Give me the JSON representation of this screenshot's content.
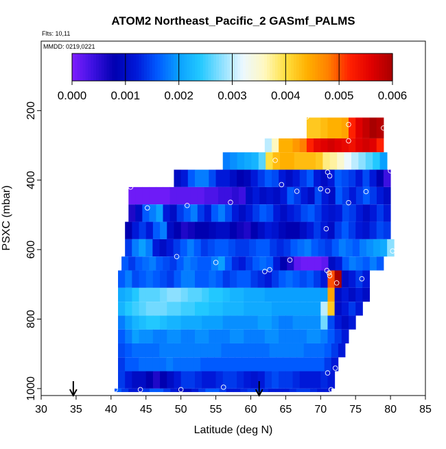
{
  "chart_data": {
    "type": "heatmap",
    "title": "ATOM2 Northeast_Pacific_2 GASmf_PALMS",
    "flights_text": "Flts: 10,11",
    "mmdd_text": "MMDD: 0219,0221",
    "xlabel": "Latitude (deg N)",
    "ylabel": "PSXC (mbar)",
    "xlim": [
      30,
      85
    ],
    "ylim": [
      1020,
      0
    ],
    "x_ticks": [
      "30",
      "35",
      "40",
      "45",
      "50",
      "55",
      "60",
      "65",
      "70",
      "75",
      "80",
      "85"
    ],
    "y_ticks": [
      "200",
      "400",
      "600",
      "800",
      "1000"
    ],
    "colorbar": {
      "range": [
        0,
        0.006
      ],
      "tick_labels": [
        "0.000",
        "0.001",
        "0.002",
        "0.003",
        "0.004",
        "0.005",
        "0.006"
      ],
      "colors": [
        "#7f1fff",
        "#3b10e0",
        "#0000b0",
        "#0018d8",
        "#005aff",
        "#0aa0ff",
        "#22c8ff",
        "#8ce0ff",
        "#ecf8ff",
        "#fff8c0",
        "#ffe040",
        "#ffb000",
        "#ff8000",
        "#ff2000",
        "#e00000",
        "#a80000"
      ]
    },
    "arrows_latitude": [
      34.6,
      61.2
    ],
    "rows": [
      {
        "p_top": 220,
        "p_bot": 280,
        "lat_start": 68,
        "lat_end": 79,
        "values": [
          0.0042,
          0.0042,
          0.0043,
          0.0044,
          0.0044,
          0.0045,
          0.0052,
          0.0056,
          0.0058,
          0.006,
          0.0059
        ]
      },
      {
        "p_top": 280,
        "p_bot": 320,
        "lat_start": 62,
        "lat_end": 79,
        "values": [
          0.003,
          0.0036,
          0.0044,
          0.0044,
          0.0046,
          0.0048,
          0.0052,
          0.0055,
          0.0056,
          0.0057,
          0.0056,
          0.0055,
          0.0054,
          0.0056,
          0.0057,
          0.0056,
          0.0052
        ]
      },
      {
        "p_top": 320,
        "p_bot": 370,
        "lat_start": 56,
        "lat_end": 79.5,
        "values": [
          0.0018,
          0.0019,
          0.002,
          0.0021,
          0.0022,
          0.0026,
          0.004,
          0.0043,
          0.0044,
          0.0044,
          0.0043,
          0.0043,
          0.0043,
          0.0042,
          0.0038,
          0.0037,
          0.0035,
          0.0032,
          0.003,
          0.0028,
          0.0026,
          0.0024,
          0.002
        ]
      },
      {
        "p_top": 370,
        "p_bot": 420,
        "lat_start": 49,
        "lat_end": 80,
        "values": [
          0.001,
          0.0012,
          0.0016,
          0.0018,
          0.0018,
          0.0015,
          0.0012,
          0.0012,
          0.001,
          0.0008,
          0.0009,
          0.0012,
          0.0014,
          0.0016,
          0.0015,
          0.0012,
          0.001,
          0.0012,
          0.0014,
          0.0016,
          0.0012,
          0.001,
          0.0012,
          0.0016,
          0.0015,
          0.0014,
          0.0012,
          0.0015,
          0.0012,
          0.0008,
          0.0004
        ]
      },
      {
        "p_top": 420,
        "p_bot": 470,
        "lat_start": 42.5,
        "lat_end": 80,
        "values": [
          0.0001,
          0.0001,
          0.0001,
          0.0001,
          0.0001,
          0.0001,
          0.0002,
          0.0002,
          0.0002,
          0.0002,
          0.0002,
          0.0003,
          0.0003,
          0.0004,
          0.0004,
          0.0005,
          0.0004,
          0.001,
          0.0012,
          0.001,
          0.0011,
          0.001,
          0.0012,
          0.0016,
          0.0014,
          0.0012,
          0.001,
          0.0015,
          0.0012,
          0.001,
          0.0016,
          0.0014,
          0.0012,
          0.0014,
          0.0016,
          0.0014,
          0.0012,
          0.001
        ]
      },
      {
        "p_top": 470,
        "p_bot": 520,
        "lat_start": 42.5,
        "lat_end": 80,
        "values": [
          0.0006,
          0.001,
          0.0016,
          0.0018,
          0.002,
          0.0012,
          0.001,
          0.0014,
          0.0016,
          0.0018,
          0.0014,
          0.0012,
          0.0016,
          0.0018,
          0.0015,
          0.0012,
          0.001,
          0.0012,
          0.0014,
          0.0016,
          0.0015,
          0.0012,
          0.001,
          0.0012,
          0.0013,
          0.0015,
          0.0016,
          0.0014,
          0.0012,
          0.0011,
          0.0012,
          0.0015,
          0.0014,
          0.0012,
          0.001,
          0.0012,
          0.0014,
          0.0012
        ]
      },
      {
        "p_top": 520,
        "p_bot": 570,
        "lat_start": 42,
        "lat_end": 80,
        "values": [
          0.0008,
          0.0012,
          0.0014,
          0.0012,
          0.0016,
          0.0018,
          0.001,
          0.0008,
          0.0006,
          0.0007,
          0.0008,
          0.0008,
          0.0009,
          0.001,
          0.001,
          0.0008,
          0.0007,
          0.0006,
          0.0008,
          0.001,
          0.0012,
          0.0011,
          0.0009,
          0.0008,
          0.0008,
          0.001,
          0.0012,
          0.0014,
          0.0012,
          0.001,
          0.0014,
          0.0016,
          0.0014,
          0.0012,
          0.0011,
          0.0013,
          0.0015,
          0.0014
        ]
      },
      {
        "p_top": 570,
        "p_bot": 620,
        "lat_start": 42,
        "lat_end": 80.5,
        "values": [
          0.0014,
          0.0018,
          0.002,
          0.0018,
          0.0012,
          0.001,
          0.0012,
          0.0014,
          0.0016,
          0.0018,
          0.0016,
          0.0014,
          0.0015,
          0.0016,
          0.0016,
          0.0015,
          0.0014,
          0.0014,
          0.0015,
          0.0016,
          0.0016,
          0.0014,
          0.0013,
          0.0014,
          0.0016,
          0.0017,
          0.0018,
          0.0016,
          0.0015,
          0.0014,
          0.0016,
          0.0018,
          0.0017,
          0.0016,
          0.0018,
          0.0019,
          0.002,
          0.0021,
          0.0028
        ]
      },
      {
        "p_top": 620,
        "p_bot": 660,
        "lat_start": 41.5,
        "lat_end": 79,
        "values": [
          0.0016,
          0.0014,
          0.0016,
          0.0017,
          0.0018,
          0.0016,
          0.0015,
          0.0014,
          0.0016,
          0.0018,
          0.0017,
          0.0016,
          0.0016,
          0.0018,
          0.002,
          0.0016,
          0.0013,
          0.0012,
          0.0014,
          0.0016,
          0.0017,
          0.0016,
          0.0012,
          0.0008,
          0.0006,
          0.0002,
          0.0001,
          0.0001,
          0.0001,
          0.0002,
          0.001,
          0.0012,
          0.0016,
          0.0018,
          0.0017,
          0.0016,
          0.0018,
          0.0016
        ]
      },
      {
        "p_top": 660,
        "p_bot": 710,
        "lat_start": 41,
        "lat_end": 77,
        "values": [
          0.0016,
          0.0018,
          0.0015,
          0.0016,
          0.0017,
          0.0016,
          0.0015,
          0.0014,
          0.0016,
          0.0018,
          0.0018,
          0.0016,
          0.0016,
          0.0017,
          0.0016,
          0.0014,
          0.0015,
          0.0016,
          0.0016,
          0.0014,
          0.0013,
          0.0012,
          0.0014,
          0.0016,
          0.0017,
          0.0016,
          0.0015,
          0.0016,
          0.0014,
          0.0012,
          0.005,
          0.006,
          0.001,
          0.0012,
          0.0014,
          0.0012
        ]
      },
      {
        "p_top": 710,
        "p_bot": 750,
        "lat_start": 41,
        "lat_end": 77,
        "values": [
          0.0021,
          0.0022,
          0.0024,
          0.0026,
          0.0026,
          0.0026,
          0.0027,
          0.0028,
          0.0028,
          0.0027,
          0.0026,
          0.0026,
          0.0025,
          0.0024,
          0.0024,
          0.0023,
          0.0022,
          0.0022,
          0.0021,
          0.0021,
          0.0021,
          0.002,
          0.002,
          0.002,
          0.002,
          0.002,
          0.002,
          0.002,
          0.002,
          0.002,
          0.0045,
          0.001,
          0.0012,
          0.001,
          0.0012,
          0.001
        ]
      },
      {
        "p_top": 750,
        "p_bot": 790,
        "lat_start": 41,
        "lat_end": 76,
        "values": [
          0.0022,
          0.0024,
          0.0025,
          0.0026,
          0.0027,
          0.0027,
          0.0027,
          0.0026,
          0.0026,
          0.0025,
          0.0025,
          0.0024,
          0.0024,
          0.0023,
          0.0023,
          0.0022,
          0.0022,
          0.0022,
          0.0021,
          0.0021,
          0.0021,
          0.0021,
          0.002,
          0.002,
          0.002,
          0.002,
          0.002,
          0.002,
          0.002,
          0.003,
          0.0042,
          0.001,
          0.0012,
          0.0014,
          0.0012
        ]
      },
      {
        "p_top": 790,
        "p_bot": 830,
        "lat_start": 41,
        "lat_end": 75,
        "values": [
          0.0018,
          0.002,
          0.0022,
          0.0023,
          0.0024,
          0.0024,
          0.0023,
          0.0022,
          0.0022,
          0.0021,
          0.0021,
          0.0021,
          0.002,
          0.002,
          0.002,
          0.0019,
          0.0019,
          0.0019,
          0.0019,
          0.0019,
          0.002,
          0.002,
          0.0019,
          0.0018,
          0.0018,
          0.0019,
          0.0019,
          0.0019,
          0.0019,
          0.0027,
          0.0015,
          0.0012,
          0.001,
          0.0012
        ]
      },
      {
        "p_top": 830,
        "p_bot": 870,
        "lat_start": 41,
        "lat_end": 74,
        "values": [
          0.0016,
          0.0018,
          0.002,
          0.0019,
          0.0019,
          0.0018,
          0.0018,
          0.0019,
          0.0019,
          0.0018,
          0.0018,
          0.0019,
          0.0019,
          0.0018,
          0.0018,
          0.0018,
          0.0019,
          0.0019,
          0.0018,
          0.0018,
          0.0018,
          0.0019,
          0.0019,
          0.0018,
          0.0018,
          0.0018,
          0.0018,
          0.0019,
          0.0019,
          0.0018,
          0.0016,
          0.0014,
          0.0012
        ]
      },
      {
        "p_top": 870,
        "p_bot": 910,
        "lat_start": 41,
        "lat_end": 73.5,
        "values": [
          0.0015,
          0.0016,
          0.0017,
          0.0017,
          0.0017,
          0.0017,
          0.0018,
          0.0018,
          0.0018,
          0.0018,
          0.0018,
          0.0018,
          0.0018,
          0.0018,
          0.0018,
          0.0017,
          0.0017,
          0.0017,
          0.0017,
          0.0017,
          0.0017,
          0.0017,
          0.0018,
          0.0018,
          0.0018,
          0.0018,
          0.0018,
          0.0017,
          0.0017,
          0.0017,
          0.0016,
          0.0014,
          0.0012
        ]
      },
      {
        "p_top": 910,
        "p_bot": 950,
        "lat_start": 41,
        "lat_end": 72.5,
        "values": [
          0.0014,
          0.0016,
          0.0016,
          0.0017,
          0.0017,
          0.0017,
          0.0017,
          0.0018,
          0.0017,
          0.0017,
          0.0017,
          0.0017,
          0.0016,
          0.0016,
          0.0016,
          0.0016,
          0.0016,
          0.0016,
          0.0016,
          0.0016,
          0.0016,
          0.0016,
          0.0016,
          0.0016,
          0.0016,
          0.0016,
          0.0016,
          0.0016,
          0.0016,
          0.0016,
          0.0014,
          0.0012
        ]
      },
      {
        "p_top": 950,
        "p_bot": 1000,
        "lat_start": 41,
        "lat_end": 72,
        "values": [
          0.0014,
          0.0012,
          0.001,
          0.001,
          0.0008,
          0.0006,
          0.0008,
          0.001,
          0.0012,
          0.0014,
          0.0014,
          0.0013,
          0.0012,
          0.0012,
          0.0013,
          0.0014,
          0.0014,
          0.0013,
          0.0012,
          0.0011,
          0.0012,
          0.0014,
          0.0015,
          0.0014,
          0.0014,
          0.0013,
          0.0012,
          0.0012,
          0.0012,
          0.0013,
          0.0012
        ]
      },
      {
        "p_top": 1000,
        "p_bot": 1010,
        "lat_start": 40.5,
        "lat_end": 71.5,
        "values": [
          0.0016,
          0.0014,
          0.0012,
          0.0012,
          0.0014,
          0.0016,
          0.0016,
          0.0014,
          0.0012,
          0.001,
          0.001,
          0.0012,
          0.0014,
          0.0016,
          0.0016,
          0.0014,
          0.0012,
          0.0012,
          0.0013,
          0.0014,
          0.0014,
          0.0013,
          0.0012,
          0.0012,
          0.0012,
          0.0013,
          0.0014,
          0.0014,
          0.0013,
          0.0012,
          0.0012
        ]
      }
    ],
    "sample_points": [
      [
        68,
        218
      ],
      [
        74,
        240
      ],
      [
        79,
        250
      ],
      [
        74,
        287
      ],
      [
        63.5,
        343
      ],
      [
        71,
        377
      ],
      [
        80,
        373
      ],
      [
        71.3,
        388
      ],
      [
        42.8,
        420
      ],
      [
        64.4,
        413
      ],
      [
        66.6,
        432
      ],
      [
        70,
        425
      ],
      [
        71,
        431
      ],
      [
        76.5,
        433
      ],
      [
        74,
        465
      ],
      [
        45.2,
        480
      ],
      [
        50.9,
        473
      ],
      [
        57.1,
        464
      ],
      [
        70.8,
        540
      ],
      [
        49.4,
        620
      ],
      [
        55,
        637
      ],
      [
        65.6,
        630
      ],
      [
        80.3,
        604
      ],
      [
        62,
        663
      ],
      [
        62.7,
        658
      ],
      [
        70.9,
        660
      ],
      [
        71.3,
        675
      ],
      [
        72.3,
        696
      ],
      [
        71.2,
        667
      ],
      [
        75.9,
        684
      ],
      [
        71,
        955
      ],
      [
        72.1,
        941
      ],
      [
        40.6,
        1003
      ],
      [
        44.2,
        1003
      ],
      [
        50,
        1003
      ],
      [
        56.1,
        996
      ],
      [
        71.5,
        1003
      ]
    ]
  }
}
